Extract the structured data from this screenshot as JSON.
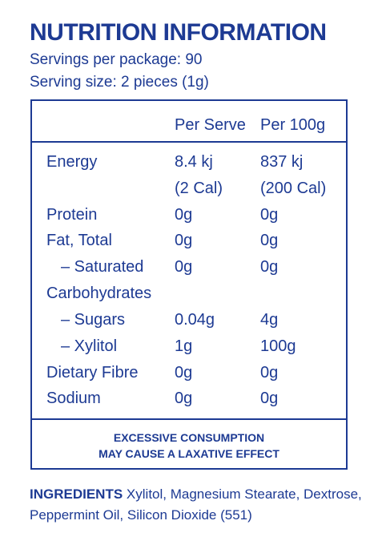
{
  "header": {
    "title": "NUTRITION INFORMATION",
    "servings_per_package": "Servings per package: 90",
    "serving_size": "Serving size: 2 pieces (1g)"
  },
  "table": {
    "columns": [
      "Per Serve",
      "Per 100g"
    ],
    "rows": [
      {
        "label": "Energy",
        "per_serve": "8.4 kj",
        "per_100g": "837 kj"
      },
      {
        "label": "",
        "per_serve": "(2 Cal)",
        "per_100g": "(200 Cal)"
      },
      {
        "label": "Protein",
        "per_serve": "0g",
        "per_100g": "0g"
      },
      {
        "label": "Fat, Total",
        "per_serve": "0g",
        "per_100g": "0g"
      },
      {
        "label": "– Saturated",
        "per_serve": "0g",
        "per_100g": "0g"
      },
      {
        "label": "Carbohydrates",
        "per_serve": "",
        "per_100g": ""
      },
      {
        "label": "– Sugars",
        "per_serve": "0.04g",
        "per_100g": "4g"
      },
      {
        "label": "– Xylitol",
        "per_serve": "1g",
        "per_100g": "100g"
      },
      {
        "label": "Dietary Fibre",
        "per_serve": "0g",
        "per_100g": "0g"
      },
      {
        "label": "Sodium",
        "per_serve": "0g",
        "per_100g": "0g"
      }
    ]
  },
  "warning": {
    "line1": "EXCESSIVE CONSUMPTION",
    "line2": "MAY CAUSE A LAXATIVE EFFECT"
  },
  "ingredients": {
    "heading": "INGREDIENTS",
    "text": "Xylitol, Magnesium Stearate, Dextrose, Peppermint Oil, Silicon Dioxide (551)"
  },
  "colors": {
    "text": "#1d3a93",
    "background": "#ffffff"
  }
}
